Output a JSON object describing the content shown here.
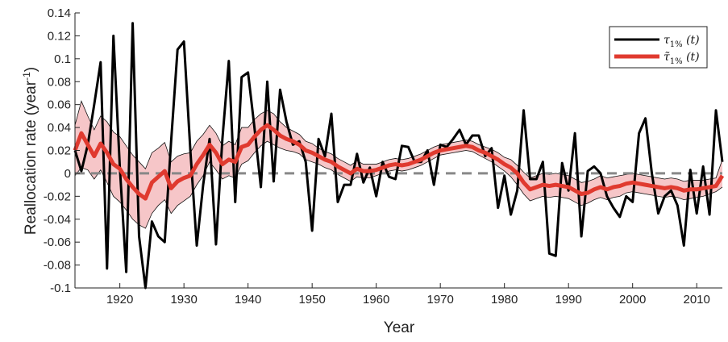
{
  "chart_data": {
    "type": "line",
    "xlabel": "Year",
    "ylabel_main": "Reallocation rate (year",
    "ylabel_sup": "-1",
    "ylabel_close": ")",
    "xlim": [
      1913,
      2014
    ],
    "ylim": [
      -0.1,
      0.14
    ],
    "x_ticks": [
      1920,
      1930,
      1940,
      1950,
      1960,
      1970,
      1980,
      1990,
      2000,
      2010
    ],
    "x_tick_labels": [
      "1920",
      "1930",
      "1940",
      "1950",
      "1960",
      "1970",
      "1980",
      "1990",
      "2000",
      "2010"
    ],
    "y_ticks": [
      -0.1,
      -0.08,
      -0.06,
      -0.04,
      -0.02,
      0,
      0.02,
      0.04,
      0.06,
      0.08,
      0.1,
      0.12,
      0.14
    ],
    "y_tick_labels": [
      "-0.1",
      "-0.08",
      "-0.06",
      "-0.04",
      "-0.02",
      "0",
      "0.02",
      "0.04",
      "0.06",
      "0.08",
      "0.1",
      "0.12",
      "0.14"
    ],
    "zero_line": 0,
    "legend_position": "top-right",
    "colors": {
      "raw": "#000000",
      "smooth": "#e03a2f",
      "band_fill": "#f6c6c8",
      "band_edge": "#111111",
      "zero": "#888888"
    },
    "series": [
      {
        "name": "τ1% (t)",
        "name_base": "τ",
        "name_sub": "1%",
        "name_arg": " (t)",
        "x": [
          1913,
          1914,
          1915,
          1916,
          1917,
          1918,
          1919,
          1920,
          1921,
          1922,
          1923,
          1924,
          1925,
          1926,
          1927,
          1928,
          1929,
          1930,
          1931,
          1932,
          1933,
          1934,
          1935,
          1936,
          1937,
          1938,
          1939,
          1940,
          1941,
          1942,
          1943,
          1944,
          1945,
          1946,
          1947,
          1948,
          1949,
          1950,
          1951,
          1952,
          1953,
          1954,
          1955,
          1956,
          1957,
          1958,
          1959,
          1960,
          1961,
          1962,
          1963,
          1964,
          1965,
          1966,
          1967,
          1968,
          1969,
          1970,
          1971,
          1972,
          1973,
          1974,
          1975,
          1976,
          1977,
          1978,
          1979,
          1980,
          1981,
          1982,
          1983,
          1984,
          1985,
          1986,
          1987,
          1988,
          1989,
          1990,
          1991,
          1992,
          1993,
          1994,
          1995,
          1996,
          1997,
          1998,
          1999,
          2000,
          2001,
          2002,
          2003,
          2004,
          2005,
          2006,
          2007,
          2008,
          2009,
          2010,
          2011,
          2012,
          2013,
          2014
        ],
        "values": [
          0.02,
          0.002,
          0.025,
          0.06,
          0.097,
          -0.083,
          0.12,
          0.005,
          -0.086,
          0.131,
          -0.055,
          -0.1,
          -0.042,
          -0.055,
          -0.06,
          0.028,
          0.108,
          0.115,
          0.02,
          -0.063,
          -0.01,
          0.03,
          -0.062,
          0.03,
          0.098,
          -0.025,
          0.084,
          0.088,
          0.04,
          -0.012,
          0.08,
          -0.007,
          0.073,
          0.045,
          0.025,
          0.028,
          0.01,
          -0.05,
          0.03,
          0.015,
          0.052,
          -0.025,
          -0.01,
          -0.01,
          0.017,
          -0.008,
          0.005,
          -0.02,
          0.01,
          -0.003,
          -0.005,
          0.024,
          0.023,
          0.01,
          0.01,
          0.02,
          -0.01,
          0.025,
          0.023,
          0.03,
          0.038,
          0.025,
          0.033,
          0.033,
          0.015,
          0.022,
          -0.03,
          -0.002,
          -0.036,
          -0.015,
          0.055,
          -0.005,
          -0.005,
          0.01,
          -0.07,
          -0.072,
          0.009,
          -0.015,
          0.035,
          -0.055,
          0.002,
          0.006,
          0.0,
          -0.02,
          -0.03,
          -0.038,
          -0.02,
          -0.025,
          0.035,
          0.048,
          0.0,
          -0.035,
          -0.02,
          -0.015,
          -0.028,
          -0.063,
          0.003,
          -0.035,
          0.006,
          -0.036,
          0.055,
          0.01
        ]
      },
      {
        "name": "τ̃1% (t)",
        "name_base": "τ̃",
        "name_sub": "1%",
        "name_arg": " (t)",
        "x": [
          1913,
          1914,
          1915,
          1916,
          1917,
          1918,
          1919,
          1920,
          1921,
          1922,
          1923,
          1924,
          1925,
          1926,
          1927,
          1928,
          1929,
          1930,
          1931,
          1932,
          1933,
          1934,
          1935,
          1936,
          1937,
          1938,
          1939,
          1940,
          1941,
          1942,
          1943,
          1944,
          1945,
          1946,
          1947,
          1948,
          1949,
          1950,
          1951,
          1952,
          1953,
          1954,
          1955,
          1956,
          1957,
          1958,
          1959,
          1960,
          1961,
          1962,
          1963,
          1964,
          1965,
          1966,
          1967,
          1968,
          1969,
          1970,
          1971,
          1972,
          1973,
          1974,
          1975,
          1976,
          1977,
          1978,
          1979,
          1980,
          1981,
          1982,
          1983,
          1984,
          1985,
          1986,
          1987,
          1988,
          1989,
          1990,
          1991,
          1992,
          1993,
          1994,
          1995,
          1996,
          1997,
          1998,
          1999,
          2000,
          2001,
          2002,
          2003,
          2004,
          2005,
          2006,
          2007,
          2008,
          2009,
          2010,
          2011,
          2012,
          2013,
          2014
        ],
        "values": [
          0.02,
          0.035,
          0.025,
          0.015,
          0.026,
          0.018,
          0.008,
          0.004,
          -0.005,
          -0.012,
          -0.018,
          -0.022,
          -0.008,
          -0.003,
          0.002,
          -0.013,
          -0.007,
          -0.004,
          -0.002,
          0.008,
          0.016,
          0.025,
          0.018,
          0.008,
          0.012,
          0.01,
          0.023,
          0.025,
          0.032,
          0.038,
          0.042,
          0.038,
          0.033,
          0.03,
          0.028,
          0.025,
          0.02,
          0.018,
          0.015,
          0.012,
          0.01,
          0.006,
          0.003,
          0.0,
          0.004,
          0.002,
          0.002,
          0.003,
          0.005,
          0.007,
          0.008,
          0.007,
          0.008,
          0.01,
          0.012,
          0.015,
          0.018,
          0.02,
          0.021,
          0.022,
          0.023,
          0.024,
          0.023,
          0.02,
          0.018,
          0.015,
          0.012,
          0.008,
          0.005,
          0.0,
          -0.008,
          -0.014,
          -0.012,
          -0.01,
          -0.011,
          -0.01,
          -0.011,
          -0.012,
          -0.015,
          -0.018,
          -0.017,
          -0.014,
          -0.012,
          -0.014,
          -0.012,
          -0.011,
          -0.009,
          -0.008,
          -0.009,
          -0.01,
          -0.011,
          -0.012,
          -0.013,
          -0.012,
          -0.013,
          -0.015,
          -0.014,
          -0.014,
          -0.013,
          -0.012,
          -0.011,
          -0.002
        ]
      }
    ],
    "band": {
      "lower": [
        -0.002,
        0.005,
        0.003,
        -0.005,
        0.003,
        -0.008,
        -0.02,
        -0.025,
        -0.032,
        -0.04,
        -0.045,
        -0.048,
        -0.035,
        -0.028,
        -0.023,
        -0.035,
        -0.028,
        -0.024,
        -0.02,
        -0.01,
        -0.002,
        0.01,
        0.003,
        -0.005,
        -0.002,
        -0.004,
        0.008,
        0.011,
        0.018,
        0.024,
        0.028,
        0.025,
        0.022,
        0.02,
        0.019,
        0.017,
        0.012,
        0.01,
        0.008,
        0.005,
        0.003,
        -0.001,
        -0.004,
        -0.007,
        -0.003,
        -0.004,
        -0.004,
        -0.002,
        0.0,
        0.002,
        0.003,
        0.002,
        0.003,
        0.005,
        0.007,
        0.01,
        0.013,
        0.016,
        0.017,
        0.018,
        0.019,
        0.02,
        0.019,
        0.016,
        0.013,
        0.01,
        0.006,
        0.002,
        -0.003,
        -0.01,
        -0.018,
        -0.024,
        -0.022,
        -0.02,
        -0.021,
        -0.02,
        -0.021,
        -0.022,
        -0.025,
        -0.028,
        -0.026,
        -0.023,
        -0.021,
        -0.023,
        -0.021,
        -0.02,
        -0.017,
        -0.016,
        -0.017,
        -0.018,
        -0.019,
        -0.02,
        -0.021,
        -0.02,
        -0.021,
        -0.023,
        -0.022,
        -0.021,
        -0.02,
        -0.018,
        -0.016,
        -0.012
      ],
      "upper": [
        0.042,
        0.063,
        0.05,
        0.038,
        0.05,
        0.045,
        0.036,
        0.032,
        0.024,
        0.016,
        0.01,
        0.004,
        0.018,
        0.022,
        0.027,
        0.01,
        0.015,
        0.017,
        0.018,
        0.028,
        0.034,
        0.042,
        0.035,
        0.024,
        0.028,
        0.025,
        0.04,
        0.04,
        0.047,
        0.052,
        0.055,
        0.052,
        0.045,
        0.04,
        0.037,
        0.034,
        0.028,
        0.026,
        0.022,
        0.019,
        0.017,
        0.013,
        0.01,
        0.007,
        0.011,
        0.008,
        0.008,
        0.008,
        0.01,
        0.012,
        0.013,
        0.012,
        0.013,
        0.015,
        0.017,
        0.02,
        0.023,
        0.025,
        0.026,
        0.027,
        0.028,
        0.029,
        0.028,
        0.025,
        0.023,
        0.021,
        0.018,
        0.014,
        0.012,
        0.007,
        0.001,
        -0.004,
        -0.002,
        0.0,
        -0.001,
        0.0,
        -0.001,
        -0.002,
        -0.005,
        -0.008,
        -0.007,
        -0.005,
        -0.002,
        -0.004,
        -0.003,
        -0.002,
        -0.001,
        0.0,
        -0.001,
        -0.002,
        -0.003,
        -0.004,
        -0.005,
        -0.004,
        -0.005,
        -0.007,
        -0.006,
        -0.006,
        -0.006,
        -0.005,
        -0.004,
        0.012
      ]
    }
  }
}
